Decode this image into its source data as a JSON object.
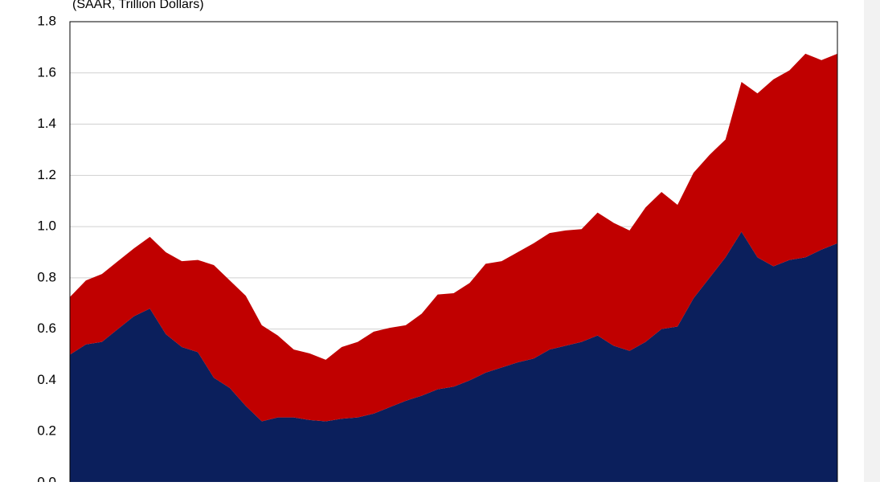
{
  "chart_data": {
    "type": "stacked-area",
    "subtitle": "(SAAR, Trillion Dollars)",
    "ylim": [
      0,
      1.8
    ],
    "yticks": [
      {
        "value": 0,
        "label": "0.0"
      },
      0.2,
      0.4,
      0.6,
      0.8,
      {
        "value": 1,
        "label": "1.0"
      },
      1.2,
      1.4,
      1.6,
      1.8
    ],
    "grid": true,
    "series": [
      {
        "color": "#0b1f5c",
        "values": [
          0.5,
          0.54,
          0.55,
          0.6,
          0.65,
          0.68,
          0.58,
          0.53,
          0.51,
          0.41,
          0.37,
          0.3,
          0.24,
          0.255,
          0.255,
          0.245,
          0.24,
          0.25,
          0.255,
          0.27,
          0.295,
          0.32,
          0.34,
          0.365,
          0.375,
          0.4,
          0.43,
          0.45,
          0.47,
          0.485,
          0.52,
          0.535,
          0.55,
          0.575,
          0.535,
          0.515,
          0.55,
          0.6,
          0.61,
          0.72,
          0.8,
          0.88,
          0.98,
          0.88,
          0.845,
          0.87,
          0.88,
          0.91,
          0.935
        ]
      },
      {
        "color": "#c00000",
        "values": [
          0.225,
          0.25,
          0.265,
          0.265,
          0.265,
          0.28,
          0.32,
          0.335,
          0.36,
          0.44,
          0.42,
          0.43,
          0.375,
          0.32,
          0.265,
          0.26,
          0.24,
          0.28,
          0.295,
          0.32,
          0.31,
          0.295,
          0.32,
          0.37,
          0.365,
          0.38,
          0.425,
          0.415,
          0.43,
          0.45,
          0.455,
          0.45,
          0.44,
          0.48,
          0.48,
          0.47,
          0.525,
          0.535,
          0.475,
          0.49,
          0.48,
          0.46,
          0.585,
          0.64,
          0.73,
          0.74,
          0.795,
          0.74,
          0.74
        ]
      }
    ]
  }
}
